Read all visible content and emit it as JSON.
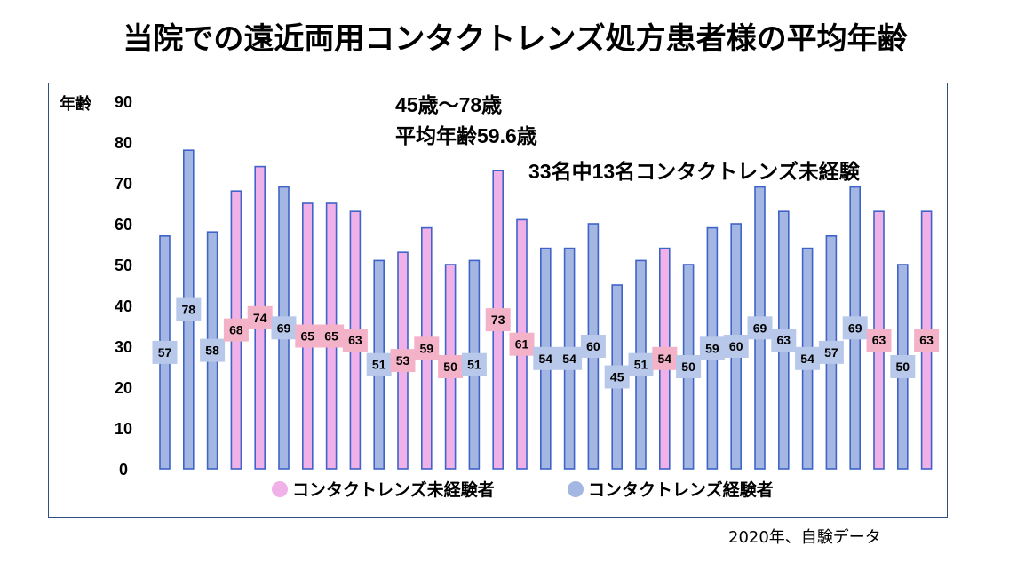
{
  "title": "当院での遠近両用コンタクトレンズ処方患者様の平均年齢",
  "footer": "2020年、自験データ",
  "colors": {
    "non_user_fill": "#f0b0e8",
    "non_user_label_bg": "#f4b2c9",
    "user_fill": "#a4b7e2",
    "user_label_bg": "#b8c8ea",
    "bar_stroke": "#3f63c8"
  },
  "chart_data": {
    "type": "bar",
    "ylabel": "年齢",
    "ylim": [
      0,
      90
    ],
    "yticks": [
      0,
      10,
      20,
      30,
      40,
      50,
      60,
      70,
      80,
      90
    ],
    "grid": false,
    "legend_position": "bottom",
    "annotations": [
      "45歳～78歳",
      "平均年齢59.6歳",
      "33名中13名コンタクトレンズ未経験"
    ],
    "series": [
      {
        "name": "コンタクトレンズ未経験者",
        "color": "#f0b0e8"
      },
      {
        "name": "コンタクトレンズ経験者",
        "color": "#a4b7e2"
      }
    ],
    "values": [
      57,
      78,
      58,
      68,
      74,
      69,
      65,
      65,
      63,
      51,
      53,
      59,
      50,
      51,
      73,
      61,
      54,
      54,
      60,
      45,
      51,
      54,
      50,
      59,
      60,
      69,
      63,
      54,
      57,
      69,
      63,
      50,
      63
    ],
    "groups": [
      1,
      1,
      1,
      0,
      0,
      1,
      0,
      0,
      0,
      1,
      0,
      0,
      0,
      1,
      0,
      0,
      1,
      1,
      1,
      1,
      1,
      0,
      1,
      1,
      1,
      1,
      1,
      1,
      1,
      1,
      0,
      1,
      0
    ]
  }
}
